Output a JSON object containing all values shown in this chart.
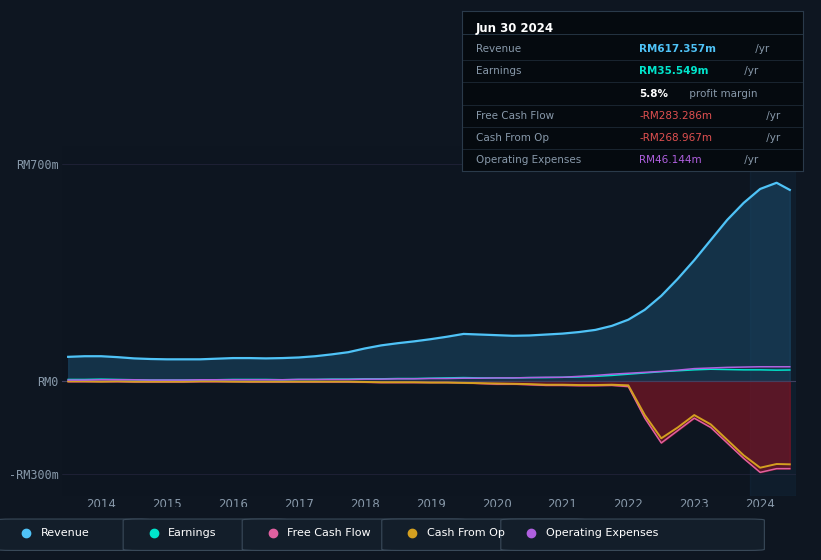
{
  "bg_color": "#0e1621",
  "chart_bg": "#0d1520",
  "title": "Jun 30 2024",
  "rows": [
    {
      "label": "Revenue",
      "value": "RM617.357m",
      "suffix": " /yr",
      "val_color": "#4fc3f7",
      "bold_val": true
    },
    {
      "label": "Earnings",
      "value": "RM35.549m",
      "suffix": " /yr",
      "val_color": "#00e5cc",
      "bold_val": true
    },
    {
      "label": "",
      "value": "5.8%",
      "suffix": " profit margin",
      "val_color": "white",
      "bold_val": true
    },
    {
      "label": "Free Cash Flow",
      "value": "-RM283.286m",
      "suffix": " /yr",
      "val_color": "#e05050",
      "bold_val": false
    },
    {
      "label": "Cash From Op",
      "value": "-RM268.967m",
      "suffix": " /yr",
      "val_color": "#e05050",
      "bold_val": false
    },
    {
      "label": "Operating Expenses",
      "value": "RM46.144m",
      "suffix": " /yr",
      "val_color": "#b060e0",
      "bold_val": false
    }
  ],
  "years": [
    2013.5,
    2013.75,
    2014,
    2014.25,
    2014.5,
    2014.75,
    2015,
    2015.25,
    2015.5,
    2015.75,
    2016,
    2016.25,
    2016.5,
    2016.75,
    2017,
    2017.25,
    2017.5,
    2017.75,
    2018,
    2018.25,
    2018.5,
    2018.75,
    2019,
    2019.25,
    2019.5,
    2019.75,
    2020,
    2020.25,
    2020.5,
    2020.75,
    2021,
    2021.25,
    2021.5,
    2021.75,
    2022,
    2022.25,
    2022.5,
    2022.75,
    2023,
    2023.25,
    2023.5,
    2023.75,
    2024,
    2024.25,
    2024.45
  ],
  "revenue": [
    78,
    80,
    80,
    77,
    73,
    71,
    70,
    70,
    70,
    72,
    74,
    74,
    73,
    74,
    76,
    80,
    86,
    93,
    105,
    115,
    122,
    128,
    135,
    143,
    152,
    150,
    148,
    146,
    147,
    150,
    153,
    158,
    165,
    178,
    198,
    230,
    275,
    330,
    390,
    455,
    520,
    575,
    620,
    640,
    617
  ],
  "earnings": [
    5,
    5,
    6,
    5,
    4,
    3,
    3,
    3,
    3,
    4,
    5,
    5,
    5,
    4,
    5,
    5,
    6,
    6,
    7,
    7,
    8,
    8,
    9,
    10,
    11,
    10,
    10,
    10,
    11,
    11,
    12,
    13,
    15,
    18,
    22,
    26,
    30,
    33,
    36,
    38,
    37,
    36,
    36,
    35,
    35.5
  ],
  "free_cash_flow": [
    -2,
    -2,
    -2,
    -2,
    -3,
    -3,
    -3,
    -3,
    -2,
    -2,
    -2,
    -3,
    -3,
    -3,
    -3,
    -3,
    -3,
    -3,
    -4,
    -5,
    -5,
    -5,
    -5,
    -5,
    -6,
    -8,
    -10,
    -10,
    -12,
    -14,
    -14,
    -15,
    -15,
    -14,
    -18,
    -120,
    -200,
    -160,
    -120,
    -150,
    -200,
    -250,
    -295,
    -283,
    -283
  ],
  "cash_from_op": [
    -1,
    -1,
    -2,
    -1,
    -2,
    -2,
    -2,
    -2,
    -1,
    -1,
    -2,
    -2,
    -2,
    -2,
    -2,
    -2,
    -2,
    -2,
    -3,
    -4,
    -4,
    -4,
    -5,
    -5,
    -6,
    -7,
    -8,
    -9,
    -10,
    -12,
    -12,
    -13,
    -13,
    -12,
    -14,
    -110,
    -185,
    -150,
    -110,
    -140,
    -190,
    -240,
    -280,
    -268,
    -269
  ],
  "op_expenses": [
    3,
    3,
    4,
    4,
    4,
    3,
    3,
    3,
    4,
    4,
    4,
    4,
    4,
    4,
    5,
    5,
    5,
    5,
    6,
    6,
    7,
    7,
    8,
    8,
    9,
    9,
    10,
    10,
    11,
    12,
    12,
    15,
    18,
    22,
    25,
    28,
    31,
    35,
    40,
    42,
    44,
    45,
    46,
    46,
    46
  ],
  "xlim": [
    2013.4,
    2024.55
  ],
  "ylim": [
    -370,
    760
  ],
  "ytick_vals": [
    700,
    0,
    -300
  ],
  "ytick_labels": [
    "RM700m",
    "RM0",
    "-RM300m"
  ],
  "xtick_vals": [
    2014,
    2015,
    2016,
    2017,
    2018,
    2019,
    2020,
    2021,
    2022,
    2023,
    2024
  ],
  "revenue_color": "#4fc3f7",
  "earnings_color": "#00e5cc",
  "fcf_color": "#e060a0",
  "cfop_color": "#d4a020",
  "opex_color": "#b060e0",
  "fill_revenue_color": "#1a4a6a",
  "fill_neg_color": "#7a1525",
  "shaded_right_color": "#1a3a5a",
  "legend": [
    {
      "label": "Revenue",
      "color": "#4fc3f7"
    },
    {
      "label": "Earnings",
      "color": "#00e5cc"
    },
    {
      "label": "Free Cash Flow",
      "color": "#e060a0"
    },
    {
      "label": "Cash From Op",
      "color": "#d4a020"
    },
    {
      "label": "Operating Expenses",
      "color": "#b060e0"
    }
  ]
}
